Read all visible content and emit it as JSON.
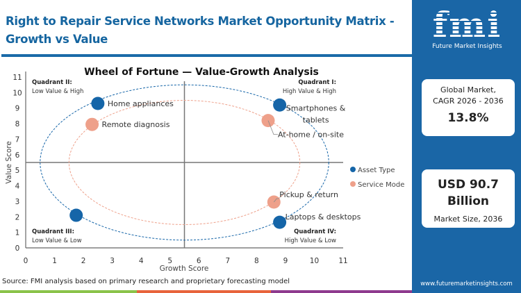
{
  "header": {
    "title": "Right to Repair Service Networks Market Opportunity Matrix - Growth vs Value"
  },
  "footer": {
    "source": "Source: FMI analysis based on primary research and proprietary forecasting model",
    "bar_colors": [
      "#8bc34a",
      "#e8643c",
      "#8e3a8e"
    ]
  },
  "panel": {
    "logo_text": "fmi",
    "logo_subtitle": "Future Market Insights",
    "cagr_label_1": "Global Market,",
    "cagr_label_2": "CAGR 2026 - 2036",
    "cagr_value": "13.8%",
    "size_value_1": "USD 90.7",
    "size_value_2": "Billion",
    "size_label": "Market Size, 2036",
    "url": "www.futuremarketinsights.com"
  },
  "chart_data": {
    "type": "scatter",
    "title": "Wheel of Fortune — Value-Growth  Analysis",
    "xlabel": "Growth Score",
    "ylabel": "Value Score",
    "xlim": [
      0,
      11
    ],
    "ylim": [
      0,
      11
    ],
    "xticks": [
      0,
      1,
      2,
      3,
      4,
      5,
      6,
      7,
      8,
      9,
      10,
      11
    ],
    "yticks": [
      0,
      1,
      2,
      3,
      4,
      5,
      6,
      7,
      8,
      9,
      10,
      11
    ],
    "divider": {
      "x": 5.5,
      "y": 5.5
    },
    "grid": false,
    "legend_placement": "right",
    "quadrants": [
      {
        "title": "Quadrant II:",
        "subtitle": "Low Value & High"
      },
      {
        "title": "Quadrant I:",
        "subtitle": "High Value & High"
      },
      {
        "title": "Quadrant III:",
        "subtitle": "Low Value & Low"
      },
      {
        "title": "Quadrant IV:",
        "subtitle": "High Value & Low"
      }
    ],
    "series": [
      {
        "name": "Asset Type",
        "color": "#1565a8",
        "ellipse": {
          "cx": 5.5,
          "cy": 5.5,
          "rx": 5,
          "ry": 5
        },
        "points": [
          {
            "label": "Home appliances",
            "x": 2.5,
            "y": 9.3
          },
          {
            "label": "Smartphones & tablets",
            "x": 8.8,
            "y": 9.2
          },
          {
            "label": "",
            "x": 1.75,
            "y": 2.1
          },
          {
            "label": "Laptops & desktops",
            "x": 8.8,
            "y": 1.65
          }
        ]
      },
      {
        "name": "Service Mode",
        "color": "#eea08a",
        "ellipse": {
          "cx": 5.5,
          "cy": 5.5,
          "rx": 4,
          "ry": 4
        },
        "points": [
          {
            "label": "Remote diagnosis",
            "x": 2.3,
            "y": 7.95
          },
          {
            "label": "At-home / on-site",
            "x": 8.4,
            "y": 8.2
          },
          {
            "label": "Pickup & return",
            "x": 8.6,
            "y": 2.95
          }
        ]
      }
    ]
  }
}
